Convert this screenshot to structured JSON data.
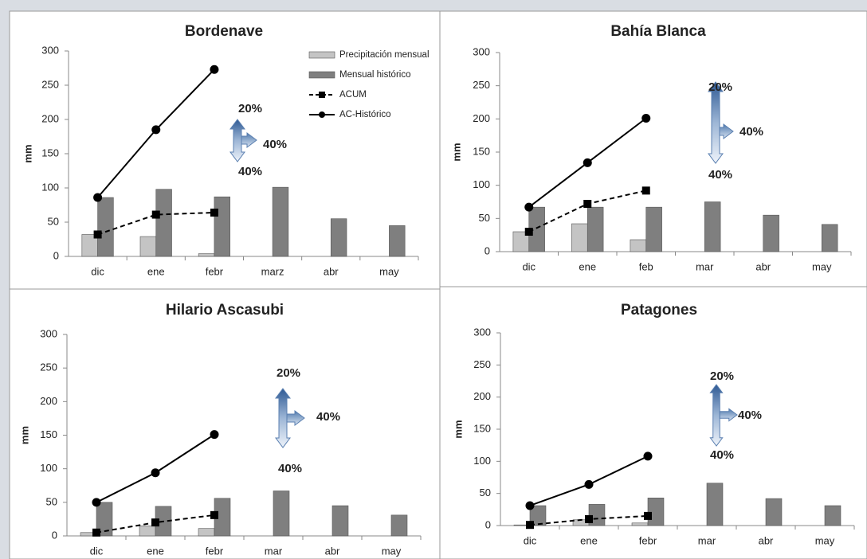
{
  "chart_data": [
    {
      "type": "combo",
      "title": "Bordenave",
      "ylabel": "mm",
      "categories": [
        "dic",
        "ene",
        "febr",
        "marz",
        "abr",
        "may"
      ],
      "ylim": [
        0,
        300
      ],
      "yticks": [
        0,
        50,
        100,
        150,
        200,
        250,
        300
      ],
      "legend": "top-right",
      "annotations": [
        "20%",
        "40%",
        "40%"
      ],
      "series": [
        {
          "name": "Precipitación mensual",
          "kind": "bar",
          "color": "#c4c4c4",
          "values": [
            32,
            29,
            4,
            null,
            null,
            null
          ]
        },
        {
          "name": "Mensual histórico",
          "kind": "bar",
          "color": "#7f7f7f",
          "values": [
            86,
            98,
            87,
            101,
            55,
            45
          ]
        },
        {
          "name": "ACUM",
          "kind": "line",
          "dash": true,
          "marker": "square",
          "color": "#000000",
          "values": [
            32,
            61,
            64,
            null,
            null,
            null
          ]
        },
        {
          "name": "AC-Histórico",
          "kind": "line",
          "dash": false,
          "marker": "circle",
          "color": "#000000",
          "values": [
            86,
            185,
            273,
            null,
            null,
            null
          ]
        }
      ]
    },
    {
      "type": "combo",
      "title": "Bahía Blanca",
      "ylabel": "mm",
      "categories": [
        "dic",
        "ene",
        "feb",
        "mar",
        "abr",
        "may"
      ],
      "ylim": [
        0,
        300
      ],
      "yticks": [
        0,
        50,
        100,
        150,
        200,
        250,
        300
      ],
      "annotations": [
        "20%",
        "40%",
        "40%"
      ],
      "series": [
        {
          "kind": "bar",
          "color": "#c4c4c4",
          "values": [
            30,
            42,
            18,
            null,
            null,
            null
          ]
        },
        {
          "kind": "bar",
          "color": "#7f7f7f",
          "values": [
            67,
            67,
            67,
            75,
            55,
            41
          ]
        },
        {
          "kind": "line",
          "dash": true,
          "marker": "square",
          "color": "#000000",
          "values": [
            30,
            72,
            92,
            null,
            null,
            null
          ]
        },
        {
          "kind": "line",
          "dash": false,
          "marker": "circle",
          "color": "#000000",
          "values": [
            67,
            134,
            201,
            null,
            null,
            null
          ]
        }
      ]
    },
    {
      "type": "combo",
      "title": "Hilario Ascasubi",
      "ylabel": "mm",
      "categories": [
        "dic",
        "ene",
        "febr",
        "mar",
        "abr",
        "may"
      ],
      "ylim": [
        0,
        300
      ],
      "yticks": [
        0,
        50,
        100,
        150,
        200,
        250,
        300
      ],
      "annotations": [
        "20%",
        "40%",
        "40%"
      ],
      "series": [
        {
          "kind": "bar",
          "color": "#c4c4c4",
          "values": [
            5,
            15,
            11,
            null,
            null,
            null
          ]
        },
        {
          "kind": "bar",
          "color": "#7f7f7f",
          "values": [
            50,
            44,
            56,
            67,
            45,
            31
          ]
        },
        {
          "kind": "line",
          "dash": true,
          "marker": "square",
          "color": "#000000",
          "values": [
            5,
            20,
            31,
            null,
            null,
            null
          ]
        },
        {
          "kind": "line",
          "dash": false,
          "marker": "circle",
          "color": "#000000",
          "values": [
            50,
            94,
            151,
            null,
            null,
            null
          ]
        }
      ]
    },
    {
      "type": "combo",
      "title": "Patagones",
      "ylabel": "mm",
      "categories": [
        "dic",
        "ene",
        "febr",
        "mar",
        "abr",
        "may"
      ],
      "ylim": [
        0,
        300
      ],
      "yticks": [
        0,
        50,
        100,
        150,
        200,
        250,
        300
      ],
      "annotations": [
        "20%",
        "40%",
        "40%"
      ],
      "series": [
        {
          "kind": "bar",
          "color": "#c4c4c4",
          "values": [
            1,
            9,
            4,
            null,
            null,
            null
          ]
        },
        {
          "kind": "bar",
          "color": "#7f7f7f",
          "values": [
            31,
            33,
            43,
            66,
            42,
            31
          ]
        },
        {
          "kind": "line",
          "dash": true,
          "marker": "square",
          "color": "#000000",
          "values": [
            1,
            10,
            15,
            null,
            null,
            null
          ]
        },
        {
          "kind": "line",
          "dash": false,
          "marker": "circle",
          "color": "#000000",
          "values": [
            31,
            64,
            108,
            null,
            null,
            null
          ]
        }
      ]
    }
  ]
}
